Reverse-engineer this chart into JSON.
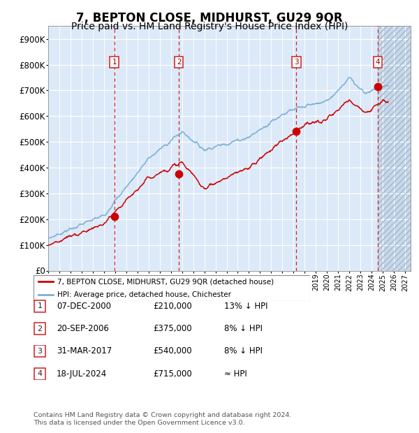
{
  "title": "7, BEPTON CLOSE, MIDHURST, GU29 9QR",
  "subtitle": "Price paid vs. HM Land Registry's House Price Index (HPI)",
  "footer": "Contains HM Land Registry data © Crown copyright and database right 2024.\nThis data is licensed under the Open Government Licence v3.0.",
  "legend_label_red": "7, BEPTON CLOSE, MIDHURST, GU29 9QR (detached house)",
  "legend_label_blue": "HPI: Average price, detached house, Chichester",
  "transactions": [
    {
      "num": 1,
      "date": "07-DEC-2000",
      "price": 210000,
      "note": "13% ↓ HPI"
    },
    {
      "num": 2,
      "date": "20-SEP-2006",
      "price": 375000,
      "note": "8% ↓ HPI"
    },
    {
      "num": 3,
      "date": "31-MAR-2017",
      "price": 540000,
      "note": "8% ↓ HPI"
    },
    {
      "num": 4,
      "date": "18-JUL-2024",
      "price": 715000,
      "note": "≈ HPI"
    }
  ],
  "transaction_dates_num": [
    2000.93,
    2006.72,
    2017.25,
    2024.54
  ],
  "transaction_prices": [
    210000,
    375000,
    540000,
    715000
  ],
  "ylim": [
    0,
    950000
  ],
  "yticks": [
    0,
    100000,
    200000,
    300000,
    400000,
    500000,
    600000,
    700000,
    800000,
    900000
  ],
  "ytick_labels": [
    "£0",
    "£100K",
    "£200K",
    "£300K",
    "£400K",
    "£500K",
    "£600K",
    "£700K",
    "£800K",
    "£900K"
  ],
  "xlim_start": 1995.0,
  "xlim_end": 2027.5,
  "background_color": "#dce9f8",
  "hpi_color": "#7bafd4",
  "price_color": "#cc0000",
  "dashed_line_color": "#cc0000",
  "grid_color": "#ffffff",
  "title_fontsize": 12,
  "subtitle_fontsize": 10
}
